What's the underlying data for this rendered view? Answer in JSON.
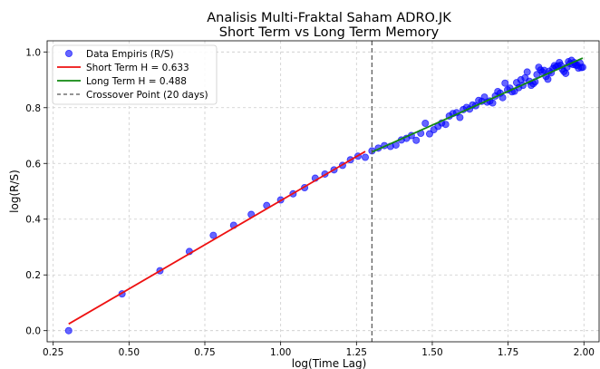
{
  "chart_data": {
    "type": "scatter",
    "title_line1": "Analisis Multi-Fraktal Saham ADRO.JK",
    "title_line2": "Short Term vs Long Term Memory",
    "xlabel": "log(Time Lag)",
    "ylabel": "log(R/S)",
    "xlim": [
      0.23,
      2.05
    ],
    "ylim": [
      -0.04,
      1.04
    ],
    "xticks": [
      0.25,
      0.5,
      0.75,
      1.0,
      1.25,
      1.5,
      1.75,
      2.0
    ],
    "xtick_labels": [
      "0.25",
      "0.50",
      "0.75",
      "1.00",
      "1.25",
      "1.50",
      "1.75",
      "2.00"
    ],
    "yticks": [
      0.0,
      0.2,
      0.4,
      0.6,
      0.8,
      1.0
    ],
    "ytick_labels": [
      "0.0",
      "0.2",
      "0.4",
      "0.6",
      "0.8",
      "1.0"
    ],
    "grid": true,
    "legend_position": "top-left",
    "series": [
      {
        "name": "Data Empiris (R/S)",
        "kind": "scatter",
        "color": "#0000ff",
        "points": [
          [
            0.301,
            0.0
          ],
          [
            0.477,
            0.132
          ],
          [
            0.602,
            0.215
          ],
          [
            0.699,
            0.284
          ],
          [
            0.778,
            0.342
          ],
          [
            0.845,
            0.378
          ],
          [
            0.903,
            0.417
          ],
          [
            0.954,
            0.449
          ],
          [
            1.0,
            0.469
          ],
          [
            1.041,
            0.491
          ],
          [
            1.079,
            0.513
          ],
          [
            1.114,
            0.547
          ],
          [
            1.146,
            0.562
          ],
          [
            1.176,
            0.577
          ],
          [
            1.204,
            0.593
          ],
          [
            1.23,
            0.613
          ],
          [
            1.255,
            0.626
          ],
          [
            1.279,
            0.622
          ],
          [
            1.301,
            0.645
          ],
          [
            1.322,
            0.655
          ],
          [
            1.342,
            0.664
          ],
          [
            1.362,
            0.661
          ],
          [
            1.38,
            0.666
          ],
          [
            1.398,
            0.684
          ],
          [
            1.415,
            0.69
          ],
          [
            1.431,
            0.7
          ],
          [
            1.447,
            0.683
          ],
          [
            1.462,
            0.708
          ],
          [
            1.477,
            0.744
          ],
          [
            1.491,
            0.706
          ],
          [
            1.505,
            0.721
          ],
          [
            1.519,
            0.733
          ],
          [
            1.531,
            0.745
          ],
          [
            1.544,
            0.74
          ],
          [
            1.556,
            0.77
          ],
          [
            1.568,
            0.779
          ],
          [
            1.58,
            0.782
          ],
          [
            1.591,
            0.765
          ],
          [
            1.602,
            0.793
          ],
          [
            1.613,
            0.801
          ],
          [
            1.623,
            0.795
          ],
          [
            1.633,
            0.81
          ],
          [
            1.643,
            0.807
          ],
          [
            1.653,
            0.826
          ],
          [
            1.663,
            0.823
          ],
          [
            1.672,
            0.838
          ],
          [
            1.681,
            0.82
          ],
          [
            1.69,
            0.824
          ],
          [
            1.699,
            0.817
          ],
          [
            1.708,
            0.842
          ],
          [
            1.716,
            0.858
          ],
          [
            1.724,
            0.852
          ],
          [
            1.732,
            0.836
          ],
          [
            1.74,
            0.888
          ],
          [
            1.748,
            0.864
          ],
          [
            1.756,
            0.87
          ],
          [
            1.763,
            0.857
          ],
          [
            1.771,
            0.859
          ],
          [
            1.778,
            0.89
          ],
          [
            1.785,
            0.872
          ],
          [
            1.792,
            0.9
          ],
          [
            1.799,
            0.88
          ],
          [
            1.806,
            0.907
          ],
          [
            1.813,
            0.928
          ],
          [
            1.82,
            0.895
          ],
          [
            1.826,
            0.88
          ],
          [
            1.833,
            0.886
          ],
          [
            1.839,
            0.893
          ],
          [
            1.845,
            0.919
          ],
          [
            1.851,
            0.945
          ],
          [
            1.857,
            0.935
          ],
          [
            1.863,
            0.928
          ],
          [
            1.869,
            0.934
          ],
          [
            1.875,
            0.912
          ],
          [
            1.881,
            0.902
          ],
          [
            1.886,
            0.931
          ],
          [
            1.892,
            0.925
          ],
          [
            1.898,
            0.941
          ],
          [
            1.903,
            0.951
          ],
          [
            1.908,
            0.946
          ],
          [
            1.914,
            0.95
          ],
          [
            1.919,
            0.962
          ],
          [
            1.924,
            0.952
          ],
          [
            1.929,
            0.938
          ],
          [
            1.934,
            0.93
          ],
          [
            1.94,
            0.923
          ],
          [
            1.944,
            0.945
          ],
          [
            1.949,
            0.965
          ],
          [
            1.954,
            0.958
          ],
          [
            1.959,
            0.97
          ],
          [
            1.964,
            0.955
          ],
          [
            1.968,
            0.962
          ],
          [
            1.973,
            0.953
          ],
          [
            1.978,
            0.952
          ],
          [
            1.982,
            0.942
          ],
          [
            1.987,
            0.96
          ],
          [
            1.991,
            0.944
          ],
          [
            1.996,
            0.945
          ]
        ]
      },
      {
        "name": "Short Term H = 0.633",
        "kind": "line",
        "color": "#ee1111",
        "points": [
          [
            0.301,
            0.024
          ],
          [
            1.279,
            0.643
          ]
        ]
      },
      {
        "name": "Long Term H = 0.488",
        "kind": "line",
        "color": "#118811",
        "points": [
          [
            1.301,
            0.641
          ],
          [
            1.996,
            0.978
          ]
        ]
      },
      {
        "name": "Crossover Point (20 days)",
        "kind": "vline",
        "color": "#555555",
        "x": 1.301
      }
    ]
  }
}
